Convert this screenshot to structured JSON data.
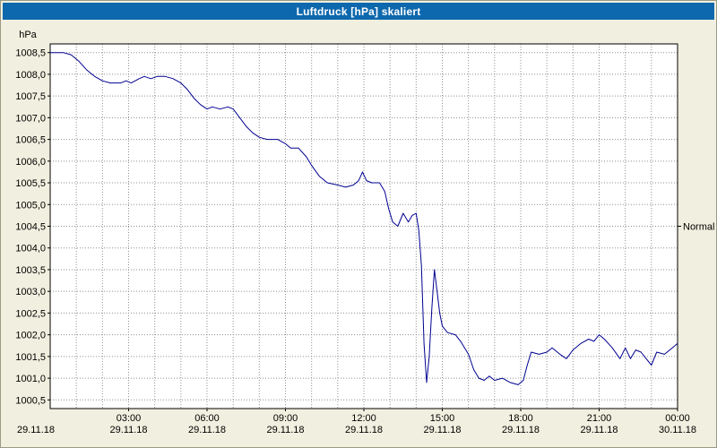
{
  "window": {
    "title": "Luftdruck [hPa] skaliert"
  },
  "colors": {
    "titlebar": "#0e68ad",
    "titlebar_text": "#ffffff",
    "background": "#f1efdf",
    "plot_background": "#ffffff",
    "grid": "#8f8f8f",
    "axis": "#000000",
    "line": "#000090",
    "label_text": "#000000"
  },
  "chart_data": {
    "type": "line",
    "title": "Luftdruck [hPa] skaliert",
    "xlabel": "",
    "ylabel": "hPa",
    "grid": "dotted, hourly vertical, 0.5 hPa horizontal",
    "legend_position": "none",
    "y_axis": {
      "unit_label": "hPa",
      "tick_min": 1000.5,
      "tick_max": 1008.5,
      "tick_step": 0.5,
      "display_min": 1000.3,
      "display_max": 1008.7,
      "ticks": [
        {
          "value": 1008.5,
          "label": "1008,5"
        },
        {
          "value": 1008.0,
          "label": "1008,0"
        },
        {
          "value": 1007.5,
          "label": "1007,5"
        },
        {
          "value": 1007.0,
          "label": "1007,0"
        },
        {
          "value": 1006.5,
          "label": "1006,5"
        },
        {
          "value": 1006.0,
          "label": "1006,0"
        },
        {
          "value": 1005.5,
          "label": "1005,5"
        },
        {
          "value": 1005.0,
          "label": "1005,0"
        },
        {
          "value": 1004.5,
          "label": "1004,5"
        },
        {
          "value": 1004.0,
          "label": "1004,0"
        },
        {
          "value": 1003.5,
          "label": "1003,5"
        },
        {
          "value": 1003.0,
          "label": "1003,0"
        },
        {
          "value": 1002.5,
          "label": "1002,5"
        },
        {
          "value": 1002.0,
          "label": "1002,0"
        },
        {
          "value": 1001.5,
          "label": "1001,5"
        },
        {
          "value": 1001.0,
          "label": "1001,0"
        },
        {
          "value": 1000.5,
          "label": "1000,5"
        }
      ]
    },
    "x_axis": {
      "min_hour": 0,
      "max_hour": 24,
      "grid_step_hours": 1,
      "ticks": [
        {
          "hour": 0,
          "time": "",
          "date": "29.11.18"
        },
        {
          "hour": 3,
          "time": "03:00",
          "date": "29.11.18"
        },
        {
          "hour": 6,
          "time": "06:00",
          "date": "29.11.18"
        },
        {
          "hour": 9,
          "time": "09:00",
          "date": "29.11.18"
        },
        {
          "hour": 12,
          "time": "12:00",
          "date": "29.11.18"
        },
        {
          "hour": 15,
          "time": "15:00",
          "date": "29.11.18"
        },
        {
          "hour": 18,
          "time": "18:00",
          "date": "29.11.18"
        },
        {
          "hour": 21,
          "time": "21:00",
          "date": "29.11.18"
        },
        {
          "hour": 24,
          "time": "00:00",
          "date": "30.11.18"
        }
      ]
    },
    "annotations": [
      {
        "label": "Normal",
        "value": 1004.5,
        "side": "right"
      }
    ],
    "series": [
      {
        "name": "Luftdruck",
        "color": "#000090",
        "points": [
          [
            0,
            1008.5
          ],
          [
            0.5,
            1008.5
          ],
          [
            0.8,
            1008.45
          ],
          [
            1.1,
            1008.3
          ],
          [
            1.4,
            1008.1
          ],
          [
            1.7,
            1007.95
          ],
          [
            2,
            1007.85
          ],
          [
            2.3,
            1007.8
          ],
          [
            2.7,
            1007.8
          ],
          [
            2.9,
            1007.85
          ],
          [
            3.1,
            1007.8
          ],
          [
            3.4,
            1007.9
          ],
          [
            3.6,
            1007.95
          ],
          [
            3.85,
            1007.9
          ],
          [
            4.1,
            1007.95
          ],
          [
            4.4,
            1007.95
          ],
          [
            4.7,
            1007.9
          ],
          [
            5,
            1007.8
          ],
          [
            5.25,
            1007.65
          ],
          [
            5.5,
            1007.45
          ],
          [
            5.75,
            1007.3
          ],
          [
            6,
            1007.2
          ],
          [
            6.2,
            1007.25
          ],
          [
            6.5,
            1007.2
          ],
          [
            6.8,
            1007.25
          ],
          [
            7,
            1007.2
          ],
          [
            7.25,
            1007.0
          ],
          [
            7.5,
            1006.8
          ],
          [
            7.75,
            1006.65
          ],
          [
            8,
            1006.55
          ],
          [
            8.3,
            1006.5
          ],
          [
            8.7,
            1006.5
          ],
          [
            9,
            1006.4
          ],
          [
            9.2,
            1006.3
          ],
          [
            9.5,
            1006.3
          ],
          [
            9.8,
            1006.1
          ],
          [
            10,
            1005.9
          ],
          [
            10.3,
            1005.65
          ],
          [
            10.6,
            1005.5
          ],
          [
            11,
            1005.45
          ],
          [
            11.3,
            1005.4
          ],
          [
            11.6,
            1005.45
          ],
          [
            11.8,
            1005.55
          ],
          [
            11.95,
            1005.75
          ],
          [
            12.1,
            1005.55
          ],
          [
            12.3,
            1005.5
          ],
          [
            12.6,
            1005.5
          ],
          [
            12.8,
            1005.3
          ],
          [
            12.95,
            1004.9
          ],
          [
            13.1,
            1004.6
          ],
          [
            13.3,
            1004.5
          ],
          [
            13.5,
            1004.8
          ],
          [
            13.7,
            1004.6
          ],
          [
            13.85,
            1004.75
          ],
          [
            14,
            1004.8
          ],
          [
            14.1,
            1004.4
          ],
          [
            14.2,
            1003.6
          ],
          [
            14.3,
            1001.8
          ],
          [
            14.4,
            1000.9
          ],
          [
            14.5,
            1001.5
          ],
          [
            14.6,
            1002.6
          ],
          [
            14.7,
            1003.5
          ],
          [
            14.8,
            1003.0
          ],
          [
            14.9,
            1002.5
          ],
          [
            15,
            1002.2
          ],
          [
            15.2,
            1002.05
          ],
          [
            15.5,
            1002.0
          ],
          [
            15.7,
            1001.85
          ],
          [
            16,
            1001.55
          ],
          [
            16.2,
            1001.2
          ],
          [
            16.4,
            1001.0
          ],
          [
            16.6,
            1000.95
          ],
          [
            16.8,
            1001.05
          ],
          [
            17,
            1000.95
          ],
          [
            17.3,
            1001.0
          ],
          [
            17.6,
            1000.9
          ],
          [
            17.9,
            1000.85
          ],
          [
            18.1,
            1000.95
          ],
          [
            18.25,
            1001.3
          ],
          [
            18.4,
            1001.6
          ],
          [
            18.7,
            1001.55
          ],
          [
            19,
            1001.6
          ],
          [
            19.2,
            1001.7
          ],
          [
            19.5,
            1001.55
          ],
          [
            19.75,
            1001.45
          ],
          [
            20,
            1001.65
          ],
          [
            20.3,
            1001.8
          ],
          [
            20.6,
            1001.9
          ],
          [
            20.8,
            1001.85
          ],
          [
            21,
            1002.0
          ],
          [
            21.2,
            1001.9
          ],
          [
            21.5,
            1001.7
          ],
          [
            21.8,
            1001.45
          ],
          [
            22,
            1001.7
          ],
          [
            22.2,
            1001.45
          ],
          [
            22.4,
            1001.65
          ],
          [
            22.6,
            1001.6
          ],
          [
            22.8,
            1001.45
          ],
          [
            23,
            1001.3
          ],
          [
            23.2,
            1001.6
          ],
          [
            23.5,
            1001.55
          ],
          [
            23.8,
            1001.7
          ],
          [
            24,
            1001.8
          ]
        ]
      }
    ]
  }
}
